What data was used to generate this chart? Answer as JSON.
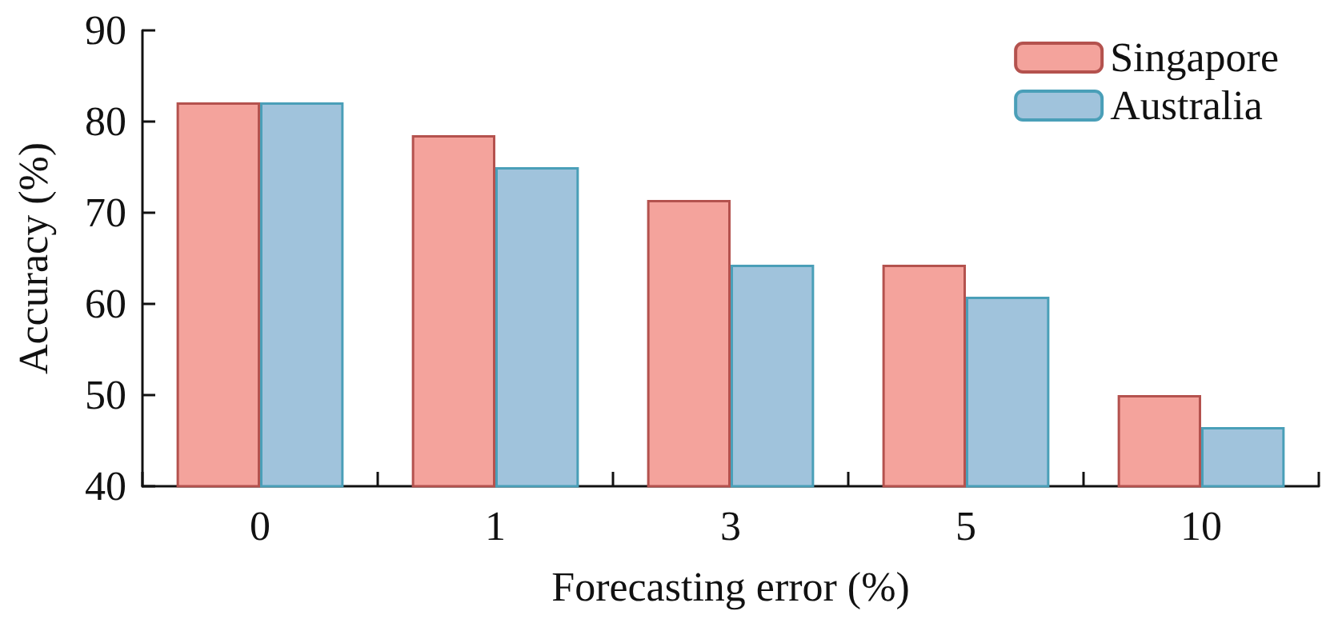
{
  "chart_data": {
    "type": "bar",
    "xlabel": "Forecasting error (%)",
    "ylabel": "Accuracy (%)",
    "categories": [
      "0",
      "1",
      "3",
      "5",
      "10"
    ],
    "series": [
      {
        "name": "Singapore",
        "color": "#f4a39c",
        "values": [
          82.1,
          78.5,
          71.4,
          64.3,
          50.0
        ]
      },
      {
        "name": "Australia",
        "color": "#a0c3dc",
        "values": [
          82.1,
          75.0,
          64.3,
          60.8,
          46.5
        ]
      }
    ],
    "ylim": [
      40,
      90
    ],
    "yticks": [
      40,
      50,
      60,
      70,
      80,
      90
    ],
    "grid": false,
    "legend": "top right"
  }
}
